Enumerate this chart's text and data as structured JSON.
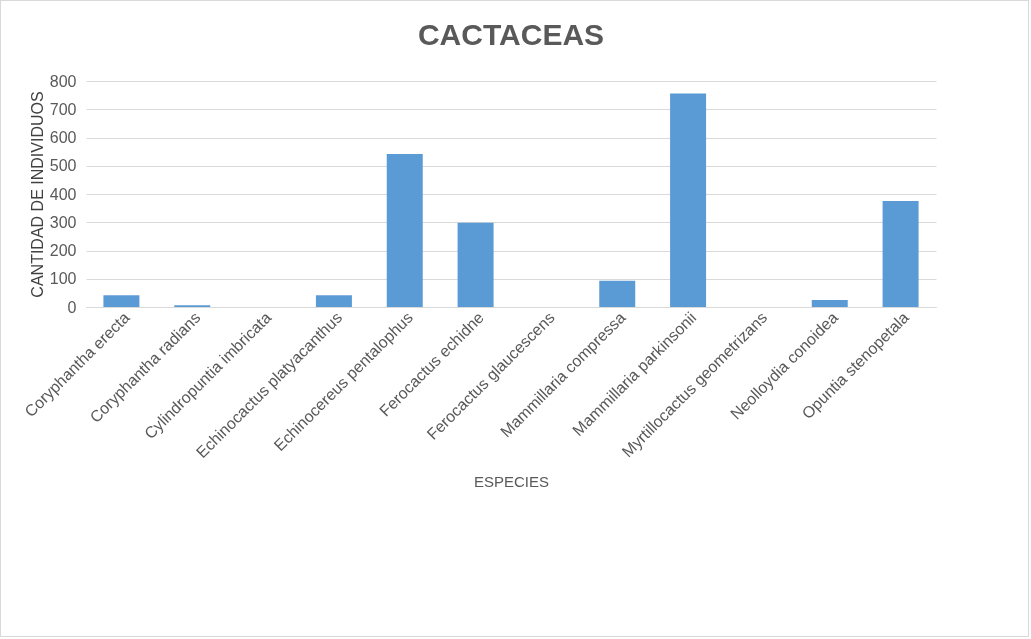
{
  "chart_data": {
    "type": "bar",
    "title": "CACTACEAS",
    "xlabel": "ESPECIES",
    "ylabel": "CANTIDAD DE INDIVIDUOS",
    "categories": [
      "Coryphantha erecta",
      "Coryphantha radians",
      "Cylindropuntia imbricata",
      "Echinocactus platyacanthus",
      "Echinocereus pentalophus",
      "Ferocactus echidne",
      "Ferocactus glaucescens",
      "Mammillaria compressa",
      "Mammillaria parkinsonii",
      "Myrtillocactus geometrizans",
      "Neolloydia conoidea",
      "Opuntia stenopetala"
    ],
    "values": [
      42,
      6,
      null,
      42,
      542,
      298,
      null,
      93,
      756,
      null,
      25,
      375
    ],
    "color": "#5b9bd5",
    "ylim": [
      0,
      800
    ],
    "yticks": [
      0,
      100,
      200,
      300,
      400,
      500,
      600,
      700,
      800
    ],
    "grid": "y"
  }
}
